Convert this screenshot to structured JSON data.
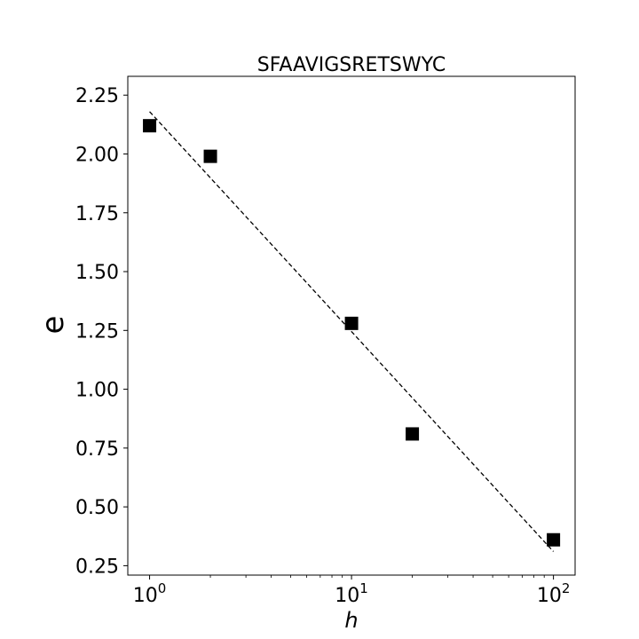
{
  "chart_data": {
    "type": "scatter",
    "title": "SFAAVIGSRETSWYC",
    "xlabel": "h",
    "ylabel": "e",
    "xscale": "log",
    "xlim": [
      0.78,
      128
    ],
    "ylim": [
      0.21,
      2.33
    ],
    "x_ticks": [
      {
        "value": 1,
        "base": "10",
        "exp": "0"
      },
      {
        "value": 10,
        "base": "10",
        "exp": "1"
      },
      {
        "value": 100,
        "base": "10",
        "exp": "2"
      }
    ],
    "y_ticks": [
      "0.25",
      "0.50",
      "0.75",
      "1.00",
      "1.25",
      "1.50",
      "1.75",
      "2.00",
      "2.25"
    ],
    "points": [
      {
        "x": 1,
        "y": 2.12
      },
      {
        "x": 2,
        "y": 1.99
      },
      {
        "x": 10,
        "y": 1.28
      },
      {
        "x": 20,
        "y": 0.81
      },
      {
        "x": 100,
        "y": 0.36
      }
    ],
    "fit_line": {
      "x": [
        1,
        100
      ],
      "y": [
        2.18,
        0.31
      ],
      "style": "dashed"
    },
    "marker": "square",
    "color": "#000000",
    "grid": false,
    "legend": "none"
  }
}
